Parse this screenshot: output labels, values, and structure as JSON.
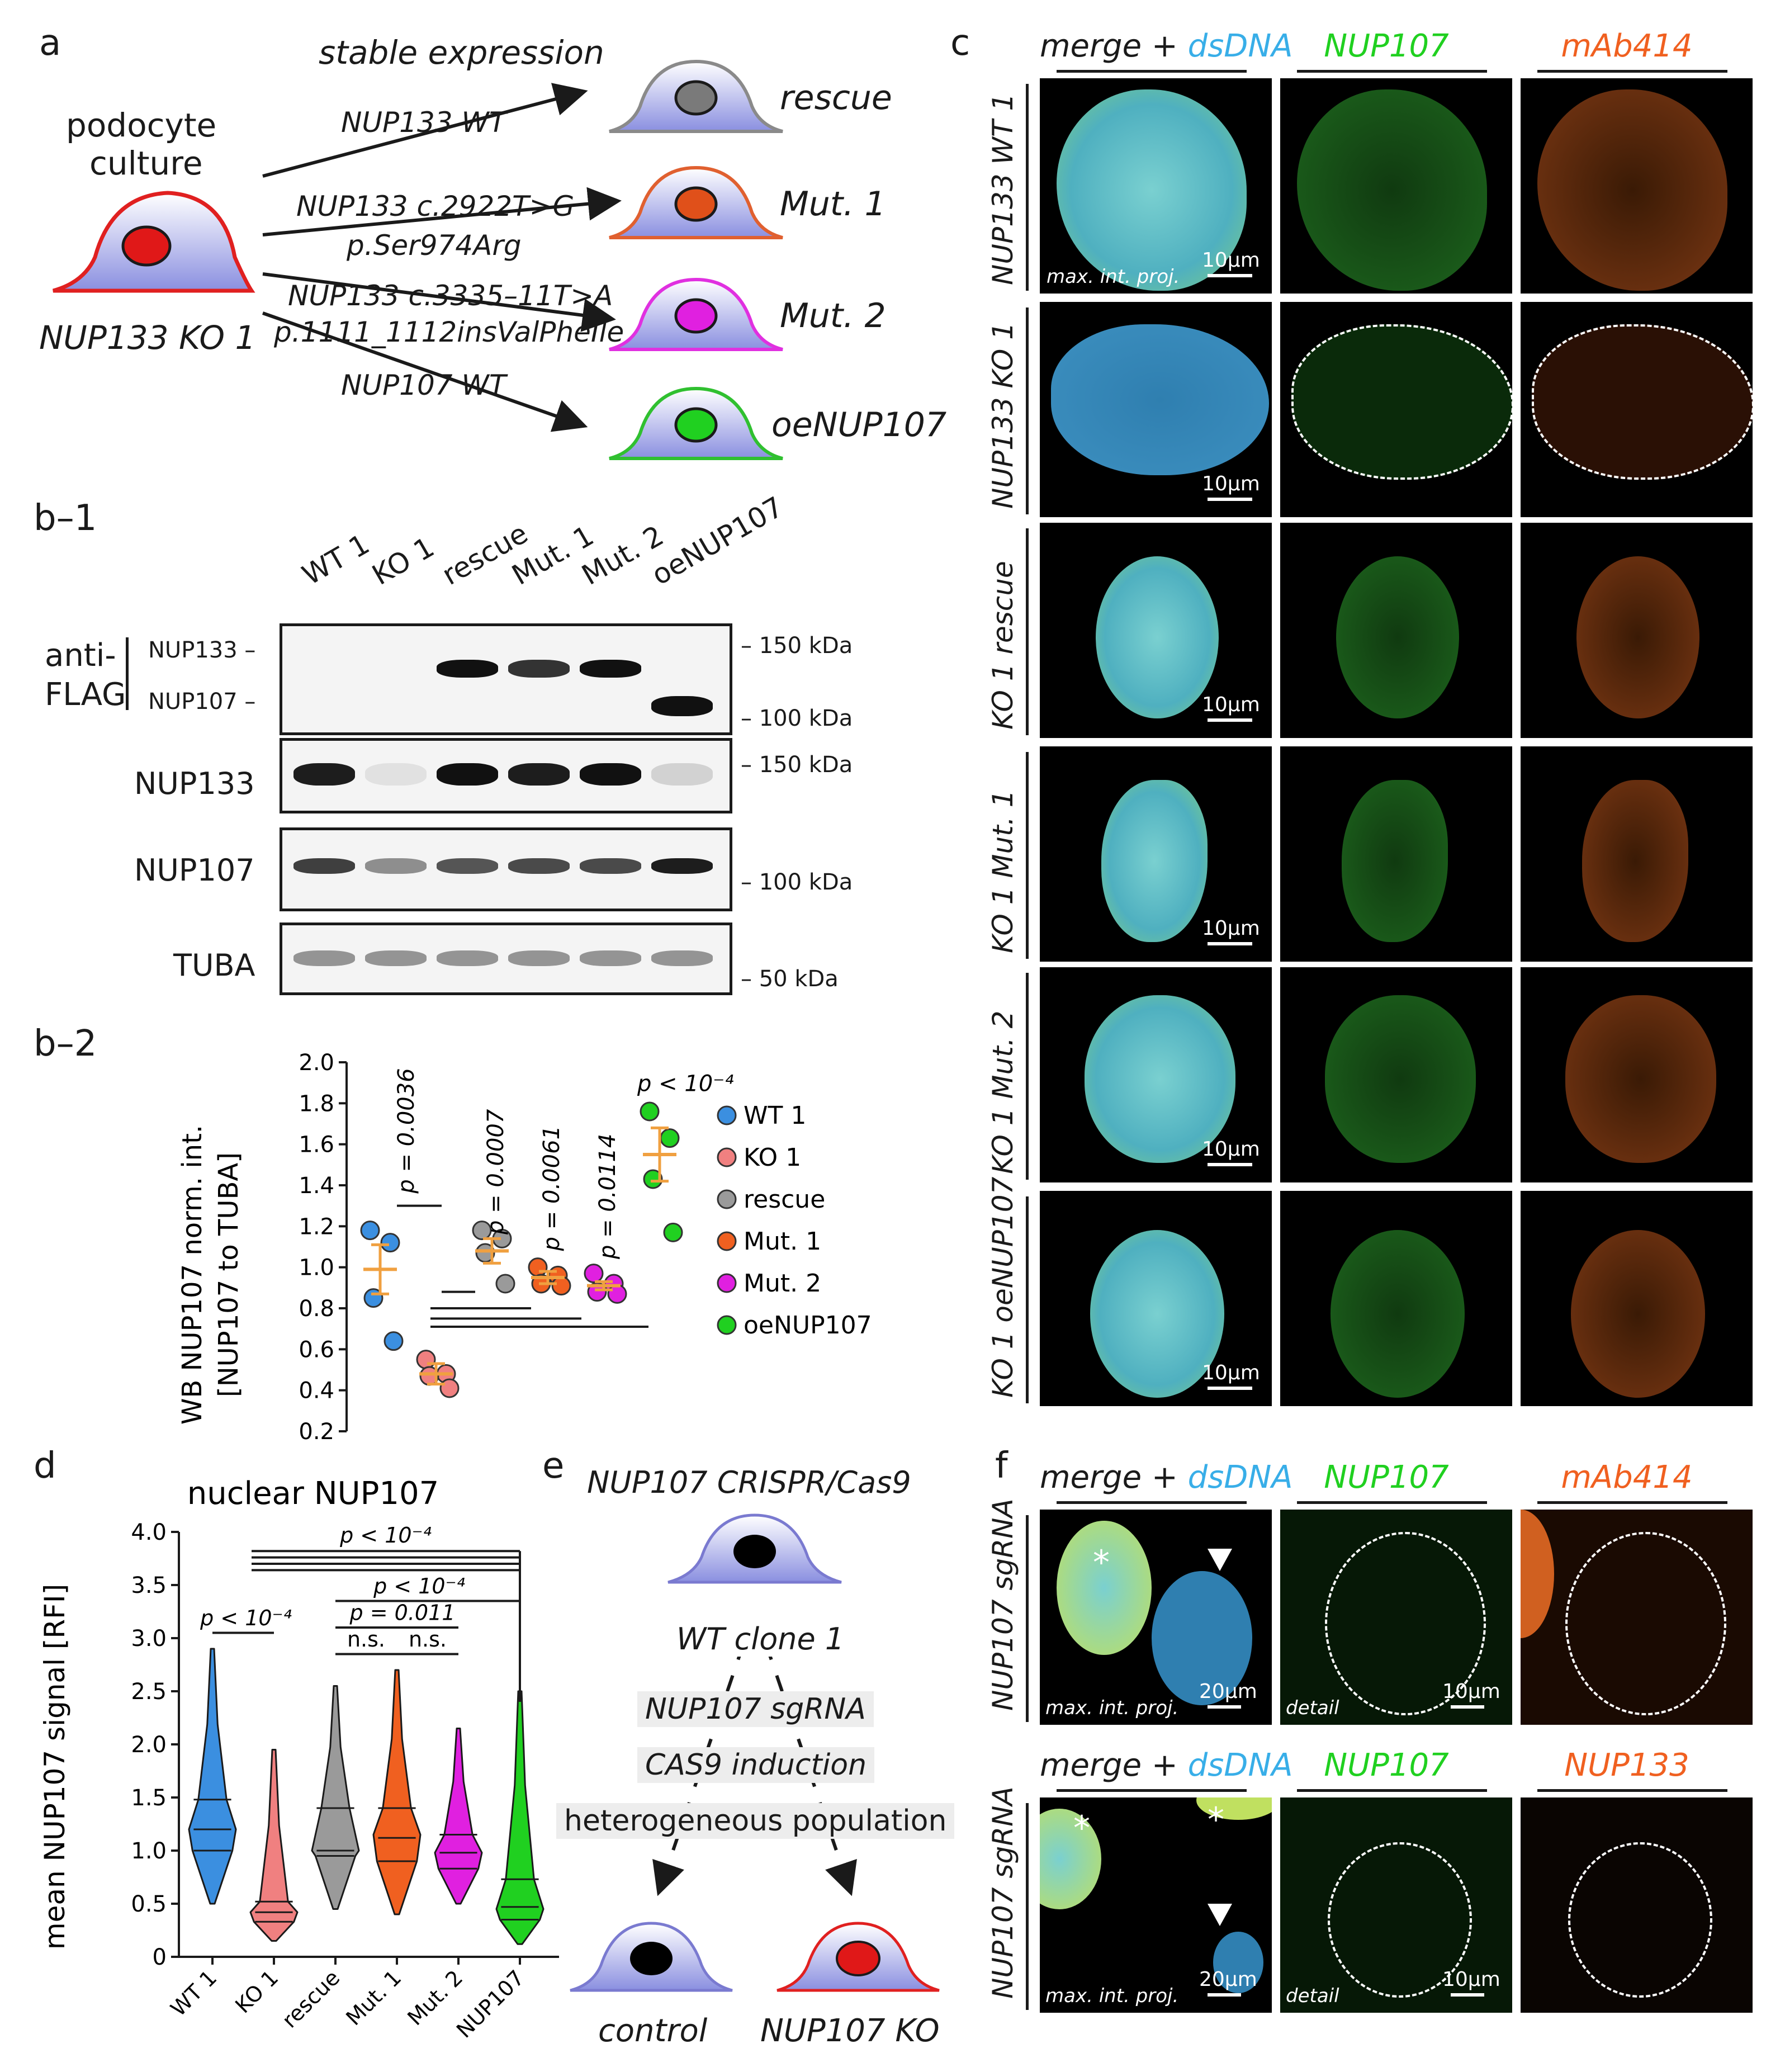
{
  "panel_a": {
    "label": "a",
    "title": "stable expression",
    "source_line1": "podocyte",
    "source_line2": "culture",
    "source_cell": "NUP133 KO 1",
    "arrows": [
      {
        "label": "NUP133 WT",
        "target": "rescue",
        "fill": "#7a7a7a",
        "border": "#8a8a8a"
      },
      {
        "label": "NUP133 c.2922T>G",
        "label2": "p.Ser974Arg",
        "target": "Mut. 1",
        "fill": "#e0501a",
        "border": "#e06030"
      },
      {
        "label": "NUP133 c.3335–11T>A",
        "label2": "p.1111_1112insValPheIle",
        "target": "Mut. 2",
        "fill": "#e020e0",
        "border": "#e030e0"
      },
      {
        "label": "NUP107 WT",
        "target": "oeNUP107",
        "fill": "#20d020",
        "border": "#30c030"
      }
    ]
  },
  "panel_b1": {
    "label": "b–1",
    "lanes": [
      "WT 1",
      "KO 1",
      "rescue",
      "Mut. 1",
      "Mut. 2",
      "oeNUP107"
    ],
    "antiflag_label1": "anti-",
    "antiflag_label2": "FLAG",
    "flag_nup133": "NUP133 –",
    "flag_nup107": "NUP107 –",
    "blots": [
      "NUP133",
      "NUP107",
      "TUBA"
    ],
    "markers": {
      "m150a": "– 150 kDa",
      "m100a": "– 100 kDa",
      "m150b": "– 150 kDa",
      "m100b": "– 100 kDa",
      "m50": "– 50 kDa"
    }
  },
  "panel_b2": {
    "label": "b–2",
    "chart_data": {
      "type": "scatter",
      "ylabel_line1": "WB NUP107 norm. int.",
      "ylabel_line2": "[NUP107 to TUBA]",
      "ylim": [
        0.2,
        2.0
      ],
      "yticks": [
        "0.2",
        "0.4",
        "0.6",
        "0.8",
        "1.0",
        "1.2",
        "1.4",
        "1.6",
        "1.8",
        "2.0"
      ],
      "series": [
        {
          "name": "WT 1",
          "color": "#3b8fe0",
          "points": [
            1.18,
            1.12,
            0.85,
            0.64
          ],
          "mean": 0.99,
          "sem": 0.12
        },
        {
          "name": "KO 1",
          "color": "#f08080",
          "points": [
            0.55,
            0.48,
            0.47,
            0.41
          ],
          "mean": 0.48,
          "sem": 0.05
        },
        {
          "name": "rescue",
          "color": "#9a9a9a",
          "points": [
            1.18,
            1.14,
            1.07,
            0.92
          ],
          "mean": 1.08,
          "sem": 0.06
        },
        {
          "name": "Mut. 1",
          "color": "#f06020",
          "points": [
            1.0,
            0.96,
            0.92,
            0.91
          ],
          "mean": 0.95,
          "sem": 0.03
        },
        {
          "name": "Mut. 2",
          "color": "#e020e0",
          "points": [
            0.97,
            0.92,
            0.88,
            0.87
          ],
          "mean": 0.91,
          "sem": 0.02
        },
        {
          "name": "oeNUP107",
          "color": "#20d020",
          "points": [
            1.76,
            1.63,
            1.43,
            1.17
          ],
          "mean": 1.55,
          "sem": 0.13
        }
      ],
      "pvalues": [
        "p = 0.0036",
        "p = 0.0007",
        "p = 0.0061",
        "p = 0.0114",
        "p < 10⁻⁴"
      ]
    }
  },
  "panel_c": {
    "label": "c",
    "col_headers": [
      {
        "part1": "merge + ",
        "part2": "dsDNA"
      },
      {
        "part1": "NUP107"
      },
      {
        "part1": "mAb414"
      }
    ],
    "rows": [
      "NUP133 WT 1",
      "NUP133 KO 1",
      "KO 1 rescue",
      "KO 1 Mut. 1",
      "KO 1 Mut. 2",
      "KO 1 oeNUP107"
    ],
    "scalebar": "10µm",
    "mip": "max. int. proj."
  },
  "panel_d": {
    "label": "d",
    "chart_data": {
      "type": "violin",
      "title": "nuclear NUP107",
      "ylabel": "mean NUP107 signal  [RFI]",
      "ylim": [
        0,
        4.0
      ],
      "yticks": [
        "0",
        "0.5",
        "1.0",
        "1.5",
        "2.0",
        "2.5",
        "3.0",
        "3.5",
        "4.0"
      ],
      "categories": [
        "WT 1",
        "KO 1",
        "rescue",
        "Mut. 1",
        "Mut. 2",
        "NUP107"
      ],
      "colors": [
        "#3b8fe0",
        "#f08080",
        "#9a9a9a",
        "#f06020",
        "#e020e0",
        "#20d020"
      ],
      "series": [
        {
          "min": 0.5,
          "max": 2.9,
          "q1": 1.0,
          "median": 1.2,
          "q3": 1.48,
          "mode": 1.2
        },
        {
          "min": 0.15,
          "max": 1.95,
          "q1": 0.33,
          "median": 0.42,
          "q3": 0.52,
          "mode": 0.42
        },
        {
          "min": 0.45,
          "max": 2.55,
          "q1": 0.95,
          "median": 1.0,
          "q3": 1.4,
          "mode": 1.0
        },
        {
          "min": 0.4,
          "max": 2.7,
          "q1": 0.9,
          "median": 1.12,
          "q3": 1.4,
          "mode": 1.15
        },
        {
          "min": 0.5,
          "max": 2.15,
          "q1": 0.83,
          "median": 0.98,
          "q3": 1.15,
          "mode": 0.98
        },
        {
          "min": 0.12,
          "max": 2.5,
          "q1": 0.35,
          "median": 0.47,
          "q3": 0.73,
          "mode": 0.45
        }
      ],
      "pvalues": [
        "p < 10⁻⁴",
        "p < 10⁻⁴",
        "p < 10⁻⁴",
        "p = 0.011",
        "n.s.",
        "n.s."
      ]
    }
  },
  "panel_e": {
    "label": "e",
    "title": "NUP107 CRISPR/Cas9",
    "start": "WT clone 1",
    "step1": "NUP107 sgRNA",
    "step2": "CAS9 induction",
    "step3": "heterogeneous population",
    "end_left": "control",
    "end_right": "NUP107 KO"
  },
  "panel_f": {
    "label": "f",
    "row1_headers": [
      {
        "part1": "merge + ",
        "part2": "dsDNA"
      },
      {
        "part1": "NUP107"
      },
      {
        "part1": "mAb414"
      }
    ],
    "row2_headers": [
      {
        "part1": "merge + ",
        "part2": "dsDNA"
      },
      {
        "part1": "NUP107"
      },
      {
        "part1": "NUP133"
      }
    ],
    "row_label": "NUP107 sgRNA",
    "mip": "max. int. proj.",
    "detail": "detail",
    "scalebar_big": "20µm",
    "scalebar_small": "10µm",
    "asterisk": "*"
  }
}
